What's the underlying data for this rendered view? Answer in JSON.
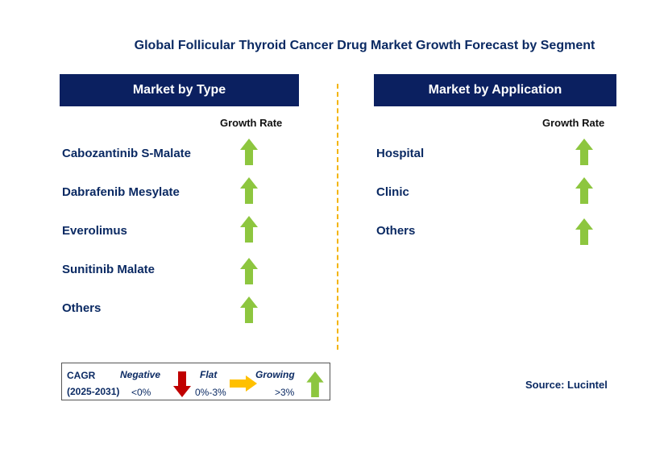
{
  "title": "Global Follicular Thyroid Cancer Drug Market Growth Forecast by Segment",
  "left_panel": {
    "header": "Market by Type",
    "growth_label": "Growth Rate",
    "items": [
      {
        "label": "Cabozantinib S-Malate",
        "trend": "growing"
      },
      {
        "label": "Dabrafenib Mesylate",
        "trend": "growing"
      },
      {
        "label": "Everolimus",
        "trend": "growing"
      },
      {
        "label": "Sunitinib Malate",
        "trend": "growing"
      },
      {
        "label": "Others",
        "trend": "growing"
      }
    ]
  },
  "right_panel": {
    "header": "Market by Application",
    "growth_label": "Growth Rate",
    "items": [
      {
        "label": "Hospital",
        "trend": "growing"
      },
      {
        "label": "Clinic",
        "trend": "growing"
      },
      {
        "label": "Others",
        "trend": "growing"
      }
    ]
  },
  "legend": {
    "cagr": "CAGR",
    "period": "(2025-2031)",
    "negative": {
      "label": "Negative",
      "range": "<0%"
    },
    "flat": {
      "label": "Flat",
      "range": "0%-3%"
    },
    "growing": {
      "label": "Growing",
      "range": ">3%"
    }
  },
  "source": "Source: Lucintel",
  "colors": {
    "header_bg": "#0b2060",
    "growing": "#8dc63f",
    "negative": "#c00000",
    "flat": "#ffc000",
    "divider": "#f4b400"
  }
}
